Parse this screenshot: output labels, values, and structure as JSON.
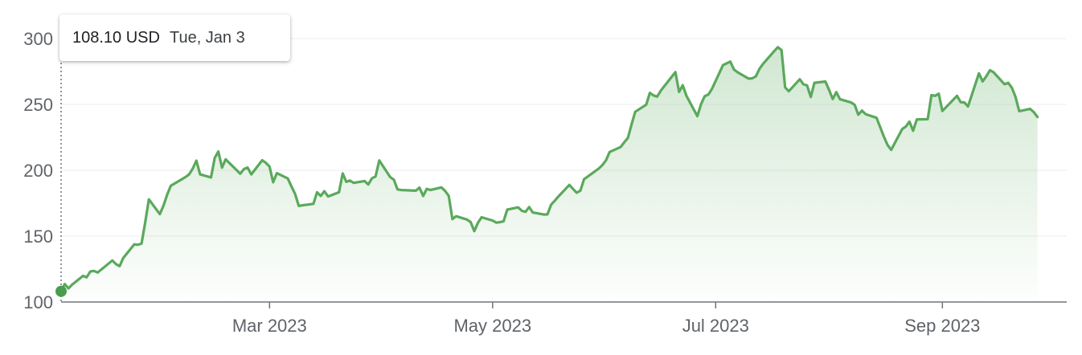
{
  "tooltip": {
    "price": "108.10 USD",
    "date": "Tue, Jan 3"
  },
  "colors": {
    "line": "#5aa95c",
    "grid": "#eeeeee",
    "axis": "#70757a",
    "marker": "#4a9d4e"
  },
  "chart_data": {
    "type": "area",
    "ylim": [
      100,
      300
    ],
    "yticks": [
      100,
      150,
      200,
      250,
      300
    ],
    "xticks": [
      {
        "label": "Mar 2023",
        "date": "2023-03-01"
      },
      {
        "label": "May 2023",
        "date": "2023-05-01"
      },
      {
        "label": "Jul 2023",
        "date": "2023-07-01"
      },
      {
        "label": "Sep 2023",
        "date": "2023-09-01"
      }
    ],
    "xlim": [
      "2023-01-03",
      "2023-10-05"
    ],
    "grid": true,
    "highlight": {
      "date": "2023-01-03",
      "value": 108.1
    },
    "series": [
      {
        "values": [
          [
            "2023-01-03",
            108.1
          ],
          [
            "2023-01-04",
            113.6
          ],
          [
            "2023-01-05",
            110.3
          ],
          [
            "2023-01-06",
            113.1
          ],
          [
            "2023-01-09",
            119.8
          ],
          [
            "2023-01-10",
            118.8
          ],
          [
            "2023-01-11",
            123.2
          ],
          [
            "2023-01-12",
            123.6
          ],
          [
            "2023-01-13",
            122.4
          ],
          [
            "2023-01-17",
            131.5
          ],
          [
            "2023-01-18",
            128.8
          ],
          [
            "2023-01-19",
            127.2
          ],
          [
            "2023-01-20",
            133.4
          ],
          [
            "2023-01-23",
            143.8
          ],
          [
            "2023-01-24",
            143.4
          ],
          [
            "2023-01-25",
            144.4
          ],
          [
            "2023-01-26",
            160.3
          ],
          [
            "2023-01-27",
            177.9
          ],
          [
            "2023-01-30",
            166.7
          ],
          [
            "2023-01-31",
            173.2
          ],
          [
            "2023-02-01",
            181.4
          ],
          [
            "2023-02-02",
            188.3
          ],
          [
            "2023-02-03",
            189.9
          ],
          [
            "2023-02-06",
            194.8
          ],
          [
            "2023-02-07",
            196.8
          ],
          [
            "2023-02-08",
            201.3
          ],
          [
            "2023-02-09",
            207.3
          ],
          [
            "2023-02-10",
            196.9
          ],
          [
            "2023-02-13",
            194.6
          ],
          [
            "2023-02-14",
            209.3
          ],
          [
            "2023-02-15",
            214.2
          ],
          [
            "2023-02-16",
            202.0
          ],
          [
            "2023-02-17",
            208.3
          ],
          [
            "2023-02-21",
            197.4
          ],
          [
            "2023-02-22",
            200.9
          ],
          [
            "2023-02-23",
            202.1
          ],
          [
            "2023-02-24",
            196.9
          ],
          [
            "2023-02-27",
            207.6
          ],
          [
            "2023-02-28",
            205.7
          ],
          [
            "2023-03-01",
            202.8
          ],
          [
            "2023-03-02",
            190.9
          ],
          [
            "2023-03-03",
            197.8
          ],
          [
            "2023-03-06",
            193.8
          ],
          [
            "2023-03-07",
            187.7
          ],
          [
            "2023-03-08",
            182.0
          ],
          [
            "2023-03-09",
            172.9
          ],
          [
            "2023-03-10",
            173.4
          ],
          [
            "2023-03-13",
            174.5
          ],
          [
            "2023-03-14",
            183.3
          ],
          [
            "2023-03-15",
            180.5
          ],
          [
            "2023-03-16",
            184.1
          ],
          [
            "2023-03-17",
            180.1
          ],
          [
            "2023-03-20",
            183.3
          ],
          [
            "2023-03-21",
            197.6
          ],
          [
            "2023-03-22",
            191.2
          ],
          [
            "2023-03-23",
            192.2
          ],
          [
            "2023-03-24",
            190.4
          ],
          [
            "2023-03-27",
            191.8
          ],
          [
            "2023-03-28",
            189.2
          ],
          [
            "2023-03-29",
            193.9
          ],
          [
            "2023-03-30",
            195.3
          ],
          [
            "2023-03-31",
            207.5
          ],
          [
            "2023-04-03",
            194.8
          ],
          [
            "2023-04-04",
            192.8
          ],
          [
            "2023-04-05",
            185.5
          ],
          [
            "2023-04-06",
            185.0
          ],
          [
            "2023-04-10",
            184.5
          ],
          [
            "2023-04-11",
            186.8
          ],
          [
            "2023-04-12",
            180.5
          ],
          [
            "2023-04-13",
            185.9
          ],
          [
            "2023-04-14",
            185.0
          ],
          [
            "2023-04-17",
            187.0
          ],
          [
            "2023-04-18",
            184.3
          ],
          [
            "2023-04-19",
            180.6
          ],
          [
            "2023-04-20",
            162.9
          ],
          [
            "2023-04-21",
            165.1
          ],
          [
            "2023-04-24",
            162.6
          ],
          [
            "2023-04-25",
            160.7
          ],
          [
            "2023-04-26",
            153.8
          ],
          [
            "2023-04-27",
            160.2
          ],
          [
            "2023-04-28",
            164.3
          ],
          [
            "2023-05-01",
            161.8
          ],
          [
            "2023-05-02",
            160.3
          ],
          [
            "2023-05-03",
            160.6
          ],
          [
            "2023-05-04",
            161.2
          ],
          [
            "2023-05-05",
            170.1
          ],
          [
            "2023-05-08",
            171.8
          ],
          [
            "2023-05-09",
            169.2
          ],
          [
            "2023-05-10",
            168.5
          ],
          [
            "2023-05-11",
            172.1
          ],
          [
            "2023-05-12",
            167.9
          ],
          [
            "2023-05-15",
            166.4
          ],
          [
            "2023-05-16",
            166.5
          ],
          [
            "2023-05-17",
            173.9
          ],
          [
            "2023-05-18",
            176.9
          ],
          [
            "2023-05-19",
            180.1
          ],
          [
            "2023-05-22",
            188.9
          ],
          [
            "2023-05-23",
            185.8
          ],
          [
            "2023-05-24",
            182.9
          ],
          [
            "2023-05-25",
            184.5
          ],
          [
            "2023-05-26",
            193.2
          ],
          [
            "2023-05-30",
            201.2
          ],
          [
            "2023-05-31",
            203.9
          ],
          [
            "2023-06-01",
            207.5
          ],
          [
            "2023-06-02",
            213.9
          ],
          [
            "2023-06-05",
            217.6
          ],
          [
            "2023-06-06",
            221.3
          ],
          [
            "2023-06-07",
            224.6
          ],
          [
            "2023-06-08",
            234.9
          ],
          [
            "2023-06-09",
            244.4
          ],
          [
            "2023-06-12",
            249.8
          ],
          [
            "2023-06-13",
            258.7
          ],
          [
            "2023-06-14",
            256.8
          ],
          [
            "2023-06-15",
            255.9
          ],
          [
            "2023-06-16",
            260.5
          ],
          [
            "2023-06-20",
            274.5
          ],
          [
            "2023-06-21",
            259.5
          ],
          [
            "2023-06-22",
            264.6
          ],
          [
            "2023-06-23",
            256.6
          ],
          [
            "2023-06-26",
            241.1
          ],
          [
            "2023-06-27",
            250.2
          ],
          [
            "2023-06-28",
            256.2
          ],
          [
            "2023-06-29",
            257.5
          ],
          [
            "2023-06-30",
            261.8
          ],
          [
            "2023-07-03",
            279.8
          ],
          [
            "2023-07-05",
            282.5
          ],
          [
            "2023-07-06",
            276.5
          ],
          [
            "2023-07-07",
            274.4
          ],
          [
            "2023-07-10",
            269.6
          ],
          [
            "2023-07-11",
            269.8
          ],
          [
            "2023-07-12",
            271.3
          ],
          [
            "2023-07-13",
            277.2
          ],
          [
            "2023-07-14",
            280.9
          ],
          [
            "2023-07-17",
            290.4
          ],
          [
            "2023-07-18",
            293.4
          ],
          [
            "2023-07-19",
            291.3
          ],
          [
            "2023-07-20",
            262.9
          ],
          [
            "2023-07-21",
            260.0
          ],
          [
            "2023-07-24",
            269.1
          ],
          [
            "2023-07-25",
            265.3
          ],
          [
            "2023-07-26",
            264.4
          ],
          [
            "2023-07-27",
            255.7
          ],
          [
            "2023-07-28",
            266.4
          ],
          [
            "2023-07-31",
            267.4
          ],
          [
            "2023-08-01",
            261.1
          ],
          [
            "2023-08-02",
            254.1
          ],
          [
            "2023-08-03",
            259.3
          ],
          [
            "2023-08-04",
            253.9
          ],
          [
            "2023-08-07",
            251.5
          ],
          [
            "2023-08-08",
            249.7
          ],
          [
            "2023-08-09",
            242.2
          ],
          [
            "2023-08-10",
            245.3
          ],
          [
            "2023-08-11",
            242.6
          ],
          [
            "2023-08-14",
            239.8
          ],
          [
            "2023-08-15",
            232.7
          ],
          [
            "2023-08-16",
            225.6
          ],
          [
            "2023-08-17",
            219.2
          ],
          [
            "2023-08-18",
            215.5
          ],
          [
            "2023-08-21",
            231.3
          ],
          [
            "2023-08-22",
            233.2
          ],
          [
            "2023-08-23",
            236.9
          ],
          [
            "2023-08-24",
            230.0
          ],
          [
            "2023-08-25",
            238.6
          ],
          [
            "2023-08-28",
            238.8
          ],
          [
            "2023-08-29",
            257.0
          ],
          [
            "2023-08-30",
            256.5
          ],
          [
            "2023-08-31",
            258.1
          ],
          [
            "2023-09-01",
            245.0
          ],
          [
            "2023-09-05",
            256.5
          ],
          [
            "2023-09-06",
            251.7
          ],
          [
            "2023-09-07",
            251.5
          ],
          [
            "2023-09-08",
            248.5
          ],
          [
            "2023-09-11",
            273.6
          ],
          [
            "2023-09-12",
            267.5
          ],
          [
            "2023-09-13",
            271.3
          ],
          [
            "2023-09-14",
            276.0
          ],
          [
            "2023-09-15",
            274.4
          ],
          [
            "2023-09-18",
            265.3
          ],
          [
            "2023-09-19",
            266.4
          ],
          [
            "2023-09-20",
            262.6
          ],
          [
            "2023-09-21",
            255.7
          ],
          [
            "2023-09-22",
            244.9
          ],
          [
            "2023-09-25",
            246.6
          ],
          [
            "2023-09-26",
            244.1
          ],
          [
            "2023-09-27",
            240.5
          ]
        ]
      }
    ]
  }
}
